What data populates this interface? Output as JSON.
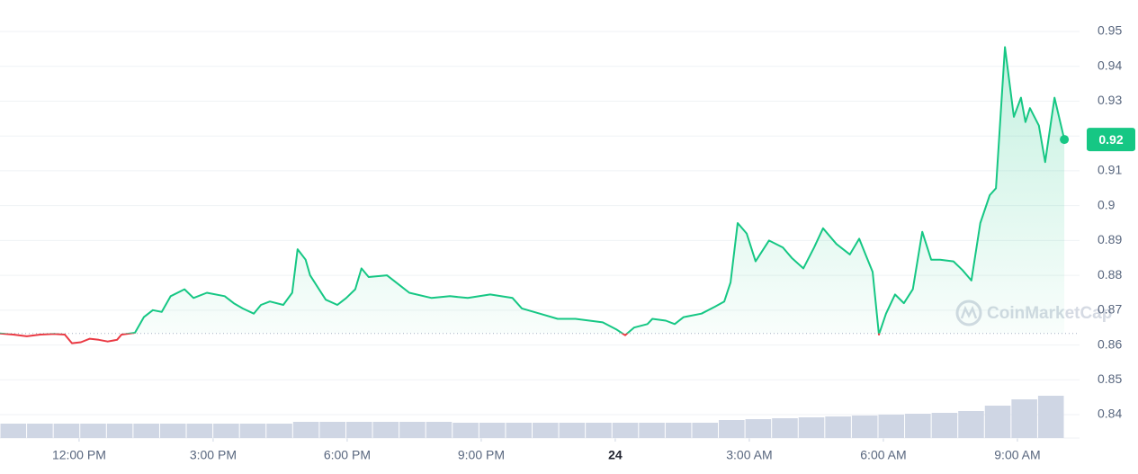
{
  "chart_data": {
    "type": "line",
    "x": [
      -1.77,
      -1.47,
      -1.17,
      -0.87,
      -0.56,
      -0.32,
      -0.16,
      0.04,
      0.24,
      0.44,
      0.64,
      0.85,
      0.95,
      1.25,
      1.45,
      1.65,
      1.85,
      2.05,
      2.36,
      2.56,
      2.86,
      3.26,
      3.46,
      3.66,
      3.91,
      4.07,
      4.27,
      4.57,
      4.77,
      4.89,
      5.07,
      5.17,
      5.37,
      5.52,
      5.78,
      5.98,
      6.18,
      6.32,
      6.48,
      6.89,
      7.19,
      7.39,
      7.89,
      8.3,
      8.7,
      9.2,
      9.7,
      9.91,
      10.31,
      10.71,
      11.11,
      11.72,
      12.02,
      12.22,
      12.42,
      12.72,
      12.83,
      13.13,
      13.33,
      13.53,
      13.93,
      14.23,
      14.44,
      14.58,
      14.74,
      14.94,
      15.14,
      15.44,
      15.75,
      15.95,
      16.21,
      16.45,
      16.65,
      16.95,
      17.25,
      17.46,
      17.6,
      17.76,
      17.9,
      18.06,
      18.26,
      18.46,
      18.66,
      18.87,
      19.07,
      19.27,
      19.57,
      19.77,
      19.97,
      20.17,
      20.38,
      20.52,
      20.72,
      20.92,
      21.08,
      21.18,
      21.28,
      21.48,
      21.62,
      21.83,
      22.05
    ],
    "values": [
      0.8633,
      0.863,
      0.8625,
      0.863,
      0.8632,
      0.863,
      0.8605,
      0.8608,
      0.8618,
      0.8615,
      0.861,
      0.8615,
      0.863,
      0.8635,
      0.868,
      0.87,
      0.8695,
      0.874,
      0.876,
      0.8735,
      0.875,
      0.874,
      0.872,
      0.8705,
      0.869,
      0.8715,
      0.8725,
      0.8715,
      0.875,
      0.8875,
      0.8845,
      0.88,
      0.876,
      0.873,
      0.8715,
      0.8735,
      0.876,
      0.882,
      0.8795,
      0.88,
      0.877,
      0.875,
      0.8735,
      0.874,
      0.8735,
      0.8745,
      0.8735,
      0.8705,
      0.869,
      0.8675,
      0.8675,
      0.8665,
      0.8645,
      0.8628,
      0.865,
      0.866,
      0.8675,
      0.867,
      0.866,
      0.868,
      0.869,
      0.871,
      0.8725,
      0.878,
      0.895,
      0.892,
      0.884,
      0.89,
      0.888,
      0.885,
      0.882,
      0.888,
      0.8935,
      0.889,
      0.886,
      0.8905,
      0.886,
      0.881,
      0.863,
      0.869,
      0.8745,
      0.872,
      0.876,
      0.8925,
      0.8845,
      0.8845,
      0.884,
      0.8815,
      0.8785,
      0.895,
      0.903,
      0.905,
      0.9455,
      0.9255,
      0.931,
      0.924,
      0.928,
      0.923,
      0.9125,
      0.931,
      0.919
    ],
    "baseline": 0.8633,
    "up_color": "#16c784",
    "down_color": "#ea3943",
    "xlim": [
      -1.77,
      22.39
    ],
    "xticks": [
      {
        "value": 0,
        "label": "12:00 PM"
      },
      {
        "value": 3,
        "label": "3:00 PM"
      },
      {
        "value": 6,
        "label": "6:00 PM"
      },
      {
        "value": 9,
        "label": "9:00 PM"
      },
      {
        "value": 12,
        "label": "24"
      },
      {
        "value": 15,
        "label": "3:00 AM"
      },
      {
        "value": 18,
        "label": "6:00 AM"
      },
      {
        "value": 21,
        "label": "9:00 AM"
      }
    ],
    "ylim": [
      0.8325,
      0.9575
    ],
    "yticks": [
      0.84,
      0.85,
      0.86,
      0.87,
      0.88,
      0.89,
      0.9,
      0.91,
      0.92,
      0.93,
      0.94,
      0.95
    ],
    "grid": true,
    "last_price_label": "0.92",
    "watermark": "CoinMarketCap",
    "volume": {
      "color": "#cfd6e4",
      "values": [
        16,
        16,
        16,
        16,
        16,
        16,
        16,
        16,
        16,
        16,
        16,
        18,
        18,
        18,
        18,
        18,
        18,
        17,
        17,
        17,
        17,
        17,
        17,
        17,
        17,
        17,
        17,
        20,
        21,
        22,
        23,
        24,
        25,
        26,
        27,
        28,
        30,
        36,
        43,
        47
      ]
    }
  }
}
